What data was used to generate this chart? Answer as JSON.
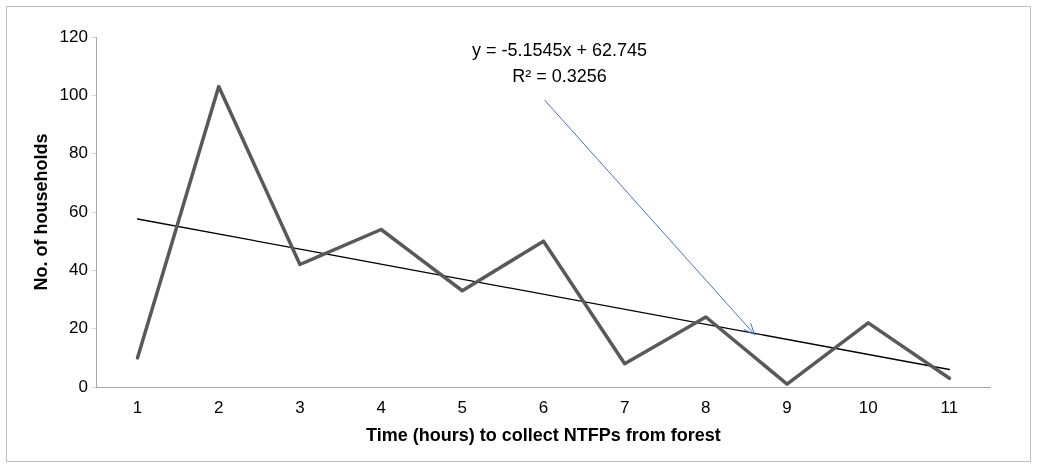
{
  "chart_data": {
    "type": "line",
    "xlabel": "Time (hours) to collect NTFPs from forest",
    "ylabel": "No. of households",
    "x": [
      1,
      2,
      3,
      4,
      5,
      6,
      7,
      8,
      9,
      10,
      11
    ],
    "xlim": [
      0.5,
      11.5
    ],
    "xticks": [
      1,
      2,
      3,
      4,
      5,
      6,
      7,
      8,
      9,
      10,
      11
    ],
    "ylim": [
      0,
      120
    ],
    "yticks": [
      0,
      20,
      40,
      60,
      80,
      100,
      120
    ],
    "series": [
      {
        "color": "#595959",
        "values": [
          10,
          103,
          42,
          54,
          33,
          50,
          8,
          24,
          1,
          22,
          3
        ]
      },
      {
        "type": "line",
        "color": "#000000",
        "x": [
          1,
          11
        ],
        "values": [
          57.6,
          6.0
        ]
      }
    ],
    "annotations": [
      {
        "text": "y = -5.1545x + 62.745\nR² = 0.3256",
        "x": 8.6,
        "y": 18
      }
    ],
    "grid": false,
    "legend": false,
    "marker": "none",
    "line_style": "solid"
  }
}
